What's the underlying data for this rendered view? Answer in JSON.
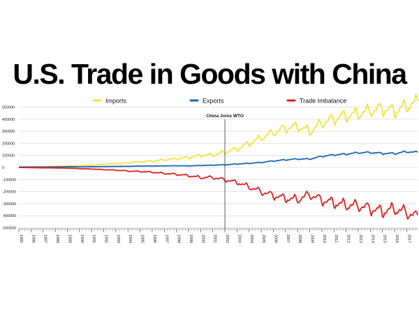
{
  "chart_data": {
    "type": "line",
    "title": "U.S. Trade in Goods with China",
    "xlabel": "",
    "ylabel": "",
    "x_range": [
      1985,
      2017.9
    ],
    "ylim": [
      -500000,
      550000
    ],
    "y_ticks": [
      500000,
      400000,
      300000,
      200000,
      100000,
      0,
      -100000,
      -200000,
      -300000,
      -400000,
      -500000
    ],
    "y_tick_labels": [
      "500000",
      "400000",
      "300000",
      "200000",
      "100000",
      "0",
      "-100000",
      "-200000",
      "-300000",
      "-400000",
      "-500000"
    ],
    "x_tick_labels": [
      "1985",
      "1986",
      "1987",
      "1988",
      "1989",
      "1990",
      "1991",
      "1992",
      "1993",
      "1994",
      "1995",
      "1996",
      "1997",
      "1998",
      "1999",
      "2000",
      "2001",
      "2002",
      "2003",
      "2004",
      "2005",
      "2006",
      "2007",
      "2008",
      "2009",
      "2010",
      "2011",
      "2012",
      "2013",
      "2014",
      "2015",
      "2016",
      "2017"
    ],
    "grid": true,
    "legend_position": "top-center",
    "annotation": {
      "label": "China Joins WTO",
      "x": 2002
    },
    "series": [
      {
        "name": "Imports",
        "color": "#f2e33a",
        "x": [
          1985,
          1986,
          1987,
          1988,
          1989,
          1990,
          1991,
          1992,
          1993,
          1994,
          1995,
          1996,
          1997,
          1998,
          1999,
          2000,
          2001,
          2002,
          2003,
          2004,
          2005,
          2006,
          2007,
          2008,
          2009,
          2010,
          2011,
          2012,
          2013,
          2014,
          2015,
          2016,
          2017,
          2017.9
        ],
        "values": [
          4000,
          5000,
          7000,
          9000,
          12000,
          15000,
          19000,
          26000,
          32000,
          39000,
          46000,
          52000,
          63000,
          71000,
          82000,
          100000,
          102000,
          125000,
          152000,
          197000,
          243000,
          288000,
          322000,
          338000,
          296000,
          365000,
          400000,
          426000,
          440000,
          468000,
          483000,
          463000,
          505000,
          540000
        ],
        "seasonal_amplitude": [
          200,
          300,
          400,
          600,
          800,
          1000,
          1500,
          2500,
          3500,
          4500,
          5500,
          7000,
          8500,
          10000,
          12000,
          14000,
          15000,
          18000,
          22000,
          28000,
          33000,
          38000,
          42000,
          45000,
          45000,
          50000,
          55000,
          57000,
          58000,
          60000,
          62000,
          62000,
          65000,
          65000
        ]
      },
      {
        "name": "Exports",
        "color": "#1a66b0",
        "x": [
          1985,
          1986,
          1987,
          1988,
          1989,
          1990,
          1991,
          1992,
          1993,
          1994,
          1995,
          1996,
          1997,
          1998,
          1999,
          2000,
          2001,
          2002,
          2003,
          2004,
          2005,
          2006,
          2007,
          2008,
          2009,
          2010,
          2011,
          2012,
          2013,
          2014,
          2015,
          2016,
          2017,
          2017.9
        ],
        "values": [
          3800,
          3100,
          3500,
          5000,
          5800,
          4800,
          6300,
          7400,
          8800,
          9300,
          11700,
          12000,
          12900,
          14200,
          13100,
          16200,
          19200,
          22100,
          28400,
          34400,
          41200,
          53700,
          62900,
          69700,
          69500,
          91900,
          104100,
          110500,
          121700,
          123700,
          116100,
          115600,
          129900,
          125000
        ],
        "seasonal_amplitude": [
          100,
          100,
          150,
          200,
          250,
          250,
          300,
          400,
          500,
          500,
          600,
          700,
          800,
          900,
          900,
          1000,
          1500,
          2000,
          2500,
          3000,
          3500,
          4000,
          5000,
          5000,
          5500,
          6000,
          6500,
          7000,
          7500,
          8000,
          8000,
          8000,
          9000,
          9000
        ]
      },
      {
        "name": "Trade Imbalance",
        "color": "#e02020",
        "x": [
          1985,
          1986,
          1987,
          1988,
          1989,
          1990,
          1991,
          1992,
          1993,
          1994,
          1995,
          1996,
          1997,
          1998,
          1999,
          2000,
          2001,
          2002,
          2003,
          2004,
          2005,
          2006,
          2007,
          2008,
          2009,
          2010,
          2011,
          2012,
          2013,
          2014,
          2015,
          2016,
          2017,
          2017.9
        ],
        "values": [
          0,
          -1700,
          -3500,
          -4000,
          -6200,
          -10200,
          -12700,
          -18300,
          -22800,
          -29500,
          -33800,
          -39500,
          -49700,
          -56900,
          -68700,
          -83800,
          -83100,
          -103100,
          -124100,
          -162300,
          -202300,
          -234100,
          -258500,
          -268000,
          -226800,
          -273100,
          -295300,
          -315100,
          -318700,
          -344800,
          -367300,
          -347000,
          -375500,
          -415000
        ],
        "seasonal_amplitude": [
          200,
          300,
          400,
          500,
          700,
          900,
          1300,
          2000,
          3000,
          4000,
          5000,
          6000,
          7500,
          9000,
          11000,
          13000,
          14000,
          16000,
          19000,
          25000,
          30000,
          34000,
          37000,
          40000,
          40000,
          45000,
          50000,
          51000,
          52000,
          54000,
          56000,
          56000,
          58000,
          58000
        ]
      }
    ]
  }
}
